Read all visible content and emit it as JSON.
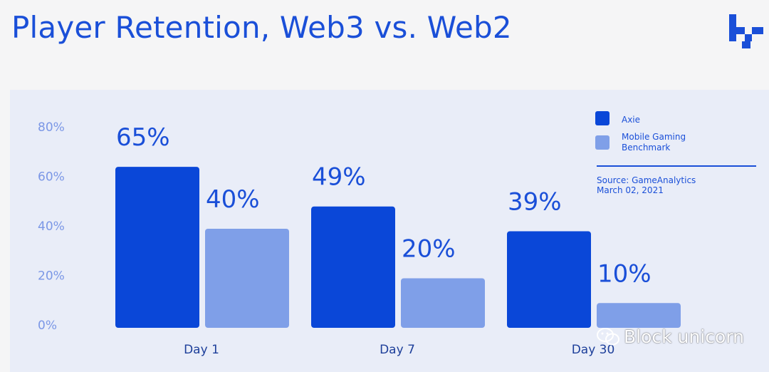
{
  "header": {
    "title": "Player Retention, Web3 vs. Web2",
    "logo_icon": "block-logo-icon"
  },
  "colors": {
    "axie": "#0a47d8",
    "benchmark": "#7f9fe8",
    "text_blue": "#1a4fd8",
    "tick": "#7b97e6",
    "panel": "#e9edf8"
  },
  "chart_data": {
    "type": "bar",
    "title": "",
    "categories": [
      "Day 1",
      "Day 7",
      "Day 30"
    ],
    "series": [
      {
        "name": "Axie",
        "values": [
          65,
          49,
          39
        ],
        "labels": [
          "65%",
          "49%",
          "39%"
        ]
      },
      {
        "name": "Mobile Gaming Benchmark",
        "values": [
          40,
          20,
          10
        ],
        "labels": [
          "40%",
          "20%",
          "10%"
        ]
      }
    ],
    "y_ticks": [
      "80%",
      "60%",
      "40%",
      "20%",
      "0%"
    ],
    "y_tick_values": [
      80,
      60,
      40,
      20,
      0
    ],
    "ylim": [
      0,
      80
    ],
    "xlabel": "",
    "ylabel": "",
    "grid": false,
    "legend_position": "top-right",
    "source_text": "Source: GameAnalytics",
    "source_date": "March 02, 2021"
  },
  "watermark": {
    "text": "Block unicorn",
    "icon": "wechat-icon"
  }
}
